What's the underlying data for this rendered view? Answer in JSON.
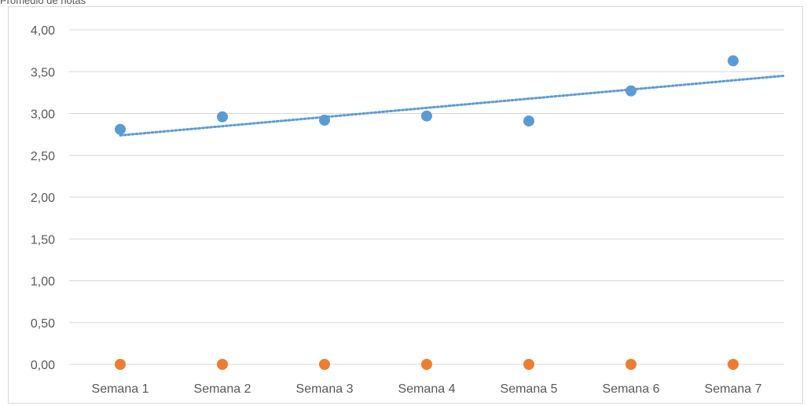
{
  "header": {
    "text": "Promedio de notas"
  },
  "chart_data": {
    "type": "scatter",
    "categories": [
      "Semana 1",
      "Semana 2",
      "Semana 3",
      "Semana 4",
      "Semana 5",
      "Semana 6",
      "Semana 7"
    ],
    "series": [
      {
        "values": [
          2.81,
          2.96,
          2.92,
          2.97,
          2.91,
          3.27,
          3.63
        ],
        "color": "#5b9bd5",
        "trendline": "linear",
        "trendline_style": "dotted"
      },
      {
        "values": [
          0,
          0,
          0,
          0,
          0,
          0,
          0
        ],
        "color": "#ed7d31"
      }
    ],
    "ylim": [
      0,
      4
    ],
    "yticks": [
      "0,00",
      "0,50",
      "1,00",
      "1,50",
      "2,00",
      "2,50",
      "3,00",
      "3,50",
      "4,00"
    ],
    "grid": true,
    "legend": "none"
  }
}
